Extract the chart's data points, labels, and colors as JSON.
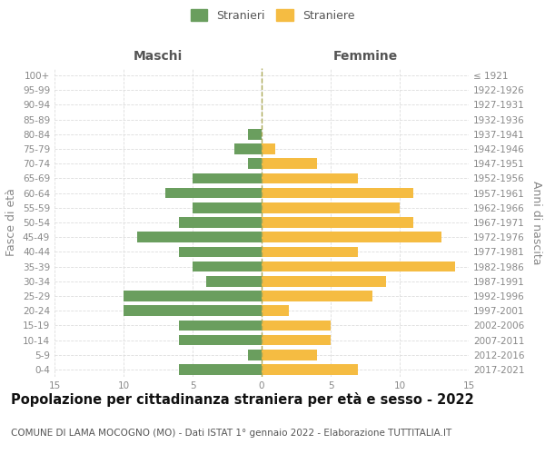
{
  "age_groups": [
    "100+",
    "95-99",
    "90-94",
    "85-89",
    "80-84",
    "75-79",
    "70-74",
    "65-69",
    "60-64",
    "55-59",
    "50-54",
    "45-49",
    "40-44",
    "35-39",
    "30-34",
    "25-29",
    "20-24",
    "15-19",
    "10-14",
    "5-9",
    "0-4"
  ],
  "birth_years": [
    "≤ 1921",
    "1922-1926",
    "1927-1931",
    "1932-1936",
    "1937-1941",
    "1942-1946",
    "1947-1951",
    "1952-1956",
    "1957-1961",
    "1962-1966",
    "1967-1971",
    "1972-1976",
    "1977-1981",
    "1982-1986",
    "1987-1991",
    "1992-1996",
    "1997-2001",
    "2002-2006",
    "2007-2011",
    "2012-2016",
    "2017-2021"
  ],
  "males": [
    0,
    0,
    0,
    0,
    1,
    2,
    1,
    5,
    7,
    5,
    6,
    9,
    6,
    5,
    4,
    10,
    10,
    6,
    6,
    1,
    6
  ],
  "females": [
    0,
    0,
    0,
    0,
    0,
    1,
    4,
    7,
    11,
    10,
    11,
    13,
    7,
    14,
    9,
    8,
    2,
    5,
    5,
    4,
    7
  ],
  "male_color": "#6a9e5e",
  "female_color": "#f5bc42",
  "background_color": "#ffffff",
  "grid_color": "#dddddd",
  "title": "Popolazione per cittadinanza straniera per età e sesso - 2022",
  "subtitle": "COMUNE DI LAMA MOCOGNO (MO) - Dati ISTAT 1° gennaio 2022 - Elaborazione TUTTITALIA.IT",
  "ylabel_left": "Fasce di età",
  "ylabel_right": "Anni di nascita",
  "xlabel_male": "Maschi",
  "xlabel_female": "Femmine",
  "legend_male": "Stranieri",
  "legend_female": "Straniere",
  "xlim": 15,
  "title_fontsize": 10.5,
  "subtitle_fontsize": 7.5,
  "axis_fontsize": 9,
  "tick_fontsize": 7.5
}
